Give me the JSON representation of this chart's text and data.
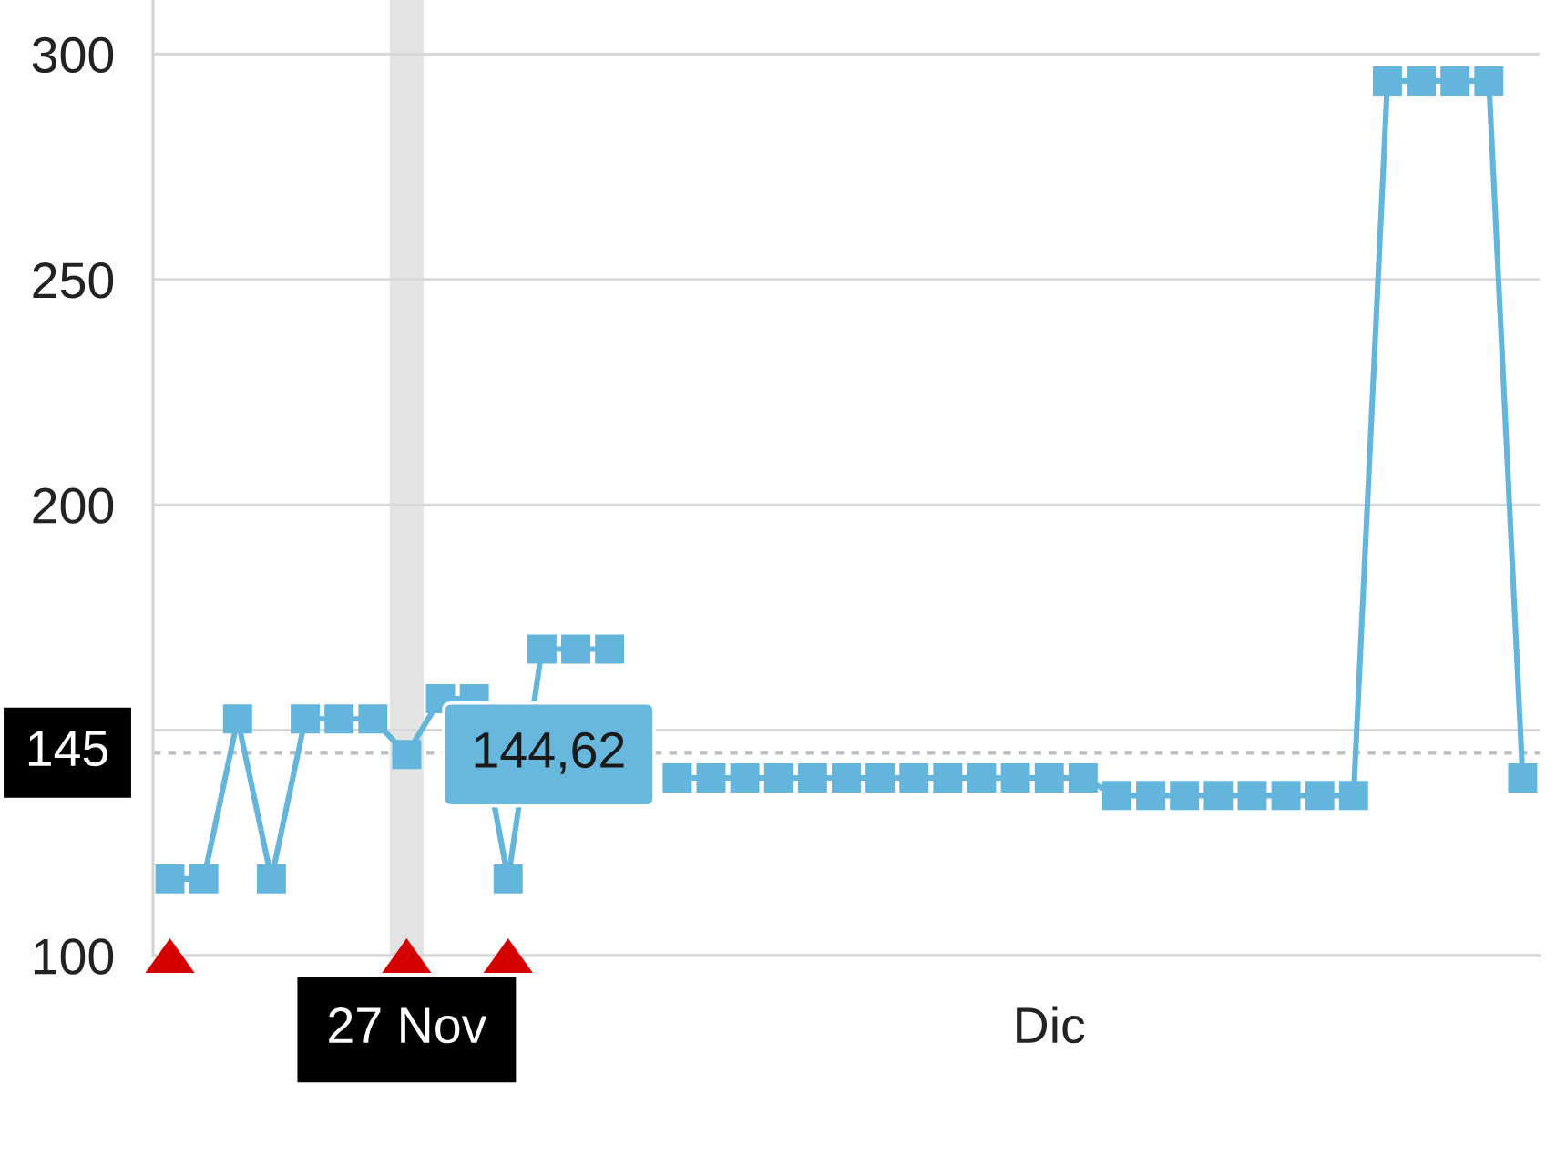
{
  "chart_data": {
    "type": "line",
    "categories": [
      null,
      null,
      null,
      null,
      null,
      null,
      null,
      "27 Nov",
      null,
      null,
      null,
      null,
      null,
      null,
      null,
      null,
      null,
      null,
      null,
      null,
      null,
      null,
      null,
      null,
      null,
      null,
      "Dic",
      null,
      null,
      null,
      null,
      null,
      null,
      null,
      null,
      null,
      null,
      null,
      null,
      null,
      null
    ],
    "ylim": [
      100,
      312
    ],
    "yticks": [
      100,
      {
        "value": 150,
        "label": null
      },
      200,
      250,
      300
    ],
    "grid": "y",
    "series": [
      {
        "color": "#64b5dc",
        "marker": "square",
        "line_style": "solid",
        "values": [
          117,
          117,
          152.5,
          117,
          152.5,
          152.5,
          152.5,
          144.62,
          157,
          157,
          117,
          168,
          168,
          168,
          null,
          139.4,
          139.4,
          139.4,
          139.4,
          139.4,
          139.4,
          139.4,
          139.4,
          139.4,
          139.4,
          139.4,
          139.4,
          139.4,
          135.5,
          135.5,
          135.5,
          135.5,
          135.5,
          135.5,
          135.5,
          135.5,
          294,
          294,
          294,
          294,
          139.4
        ],
        "value_labels": [
          null,
          null,
          null,
          null,
          null,
          null,
          null,
          "144,62",
          null,
          null,
          null,
          null,
          null,
          null,
          null,
          null,
          null,
          null,
          null,
          null,
          null,
          null,
          null,
          null,
          null,
          null,
          null,
          null,
          null,
          null,
          null,
          null,
          null,
          null,
          null,
          null,
          null,
          null,
          null,
          null,
          null
        ]
      },
      {
        "type": "scatter",
        "color": "#d40000",
        "marker": "triangle",
        "values": [
          100,
          null,
          null,
          null,
          null,
          null,
          null,
          100,
          null,
          null,
          100,
          null,
          null,
          null,
          null,
          null,
          null,
          null,
          null,
          null,
          null,
          null,
          null,
          null,
          null,
          null,
          null,
          null,
          null,
          null,
          null,
          null,
          null,
          null,
          null,
          null,
          null,
          null,
          null,
          null,
          null
        ]
      }
    ],
    "ref_lines": [
      {
        "axis": "y",
        "value": 145,
        "label": "145",
        "line_style": "dashed",
        "color": "#bdbdbd"
      }
    ],
    "bands": [
      {
        "axis": "x",
        "from": "27 Nov",
        "to": "27 Nov",
        "color": "#e3e3e3"
      }
    ]
  }
}
